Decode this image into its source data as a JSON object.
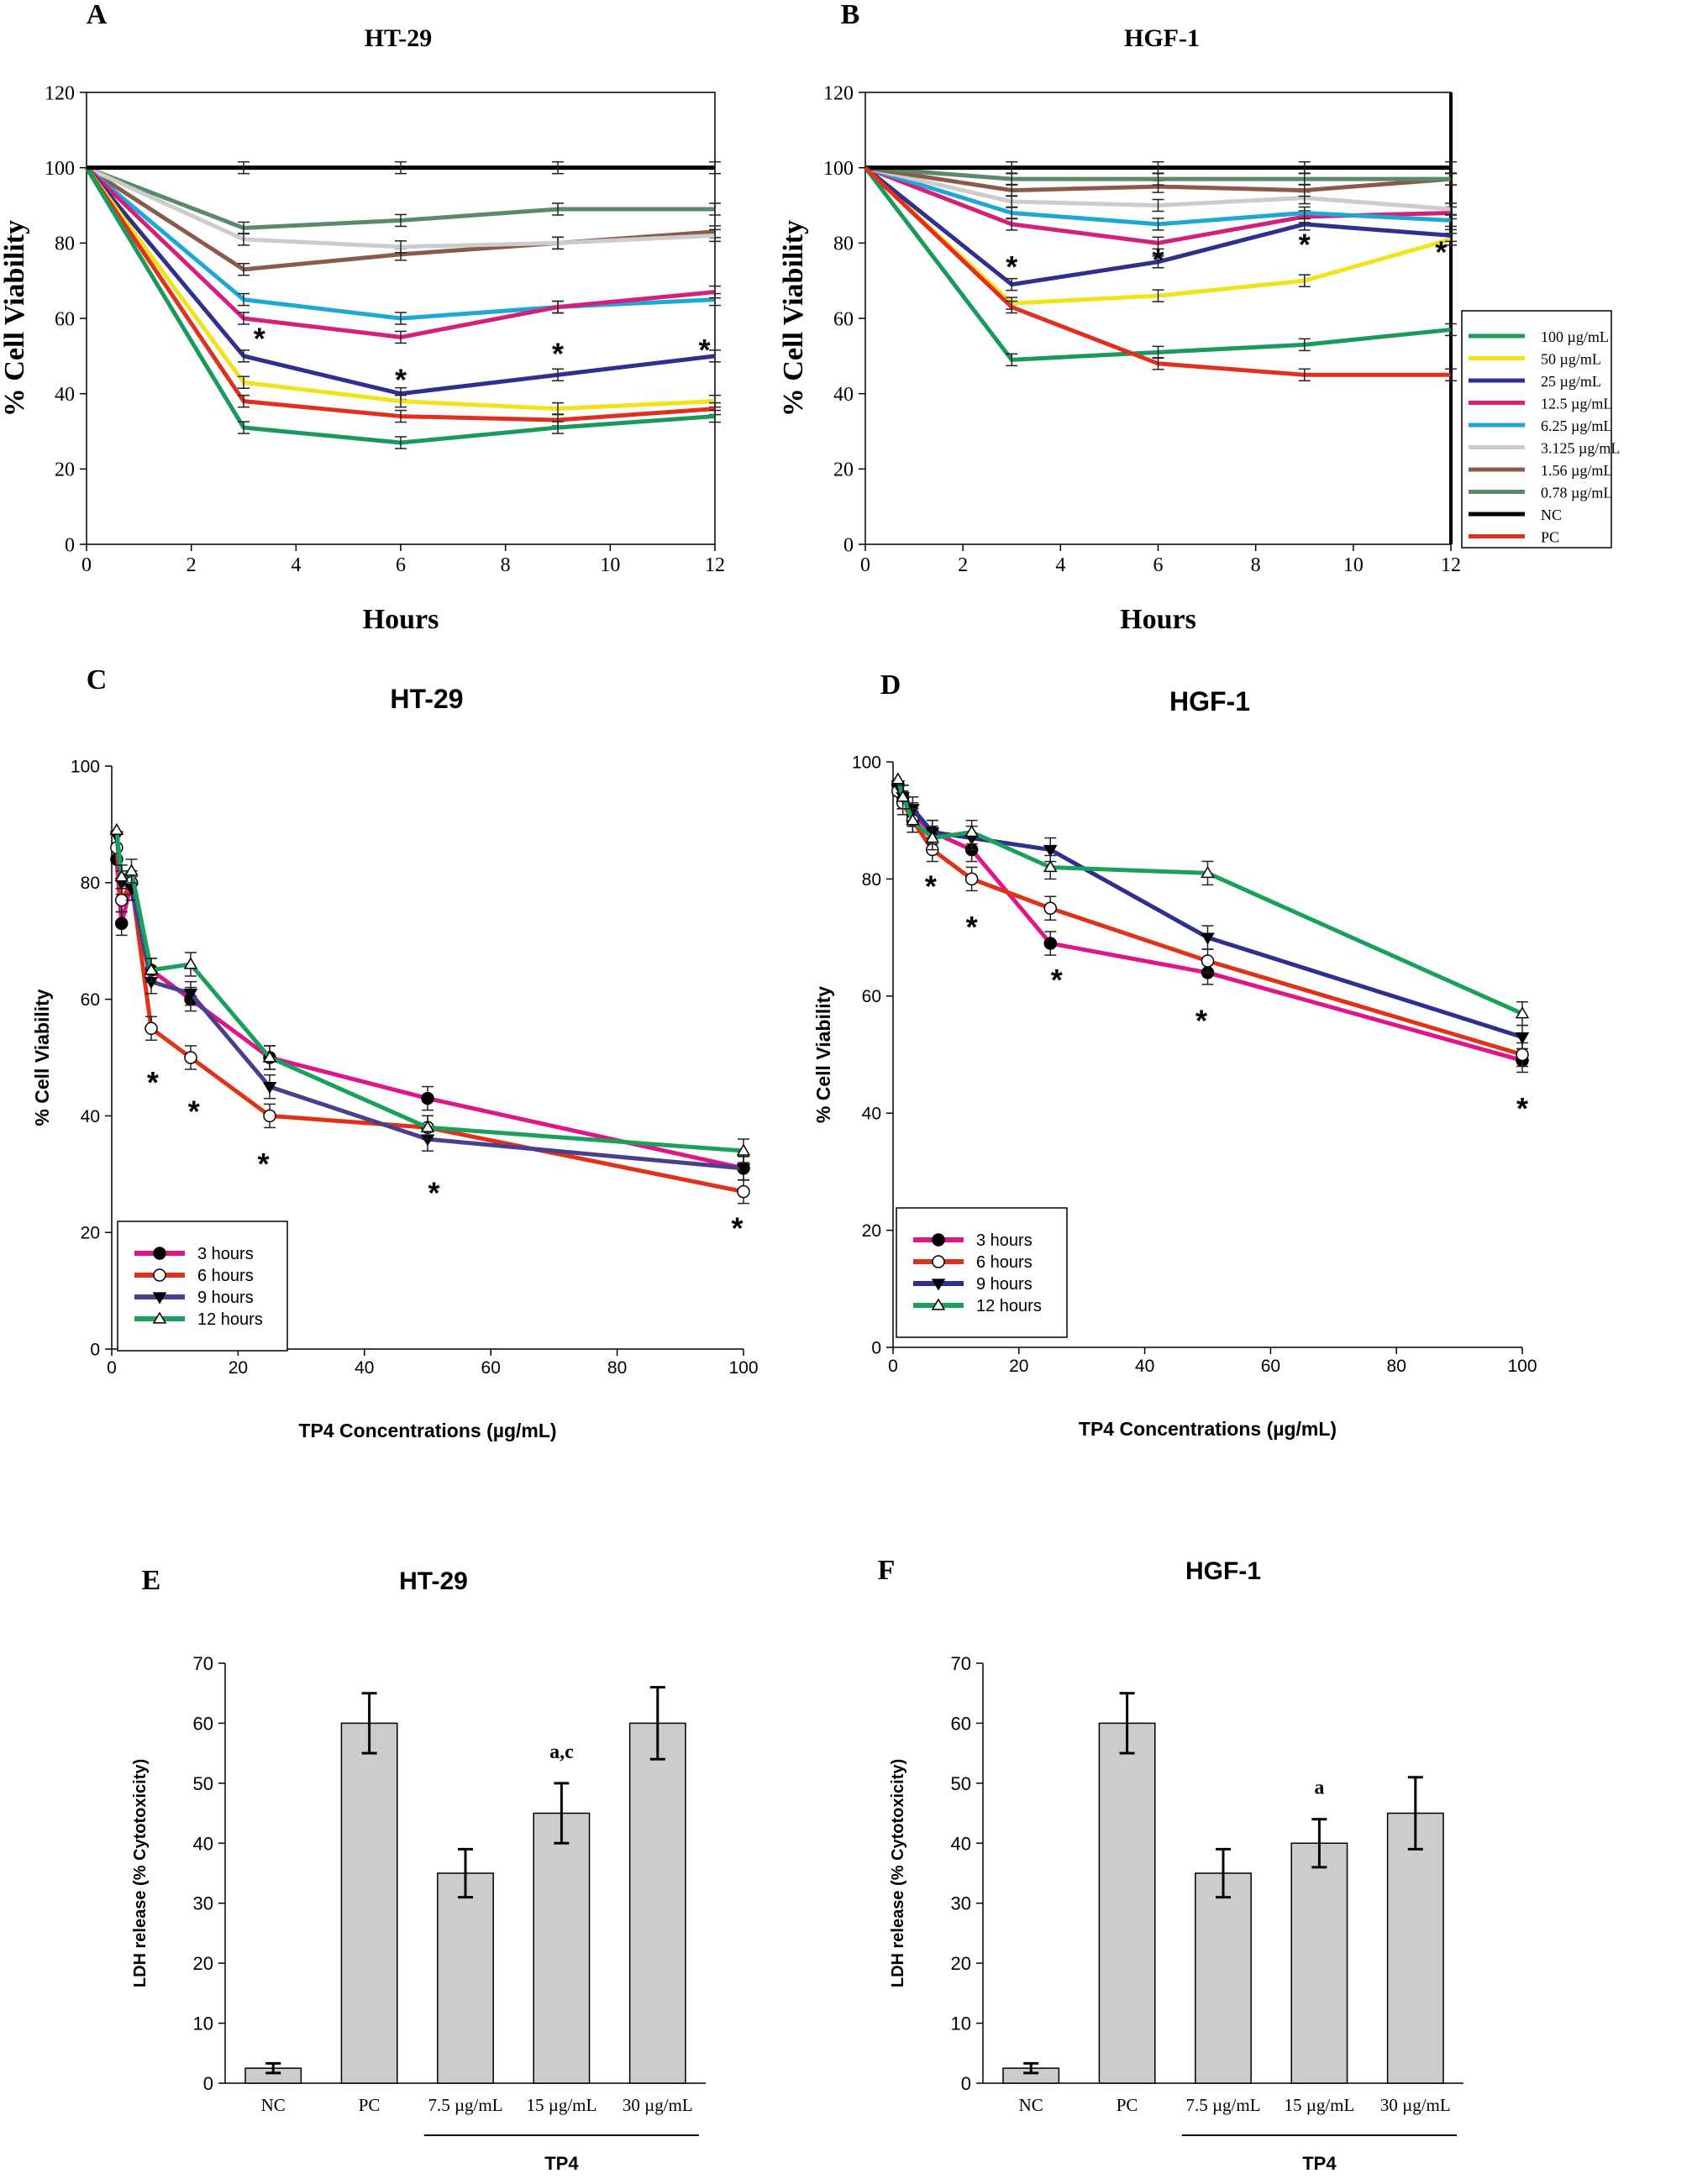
{
  "figure": {
    "panels_meta": "six panels A–F"
  },
  "chart_data": [
    {
      "id": "A",
      "type": "line",
      "letter": "A",
      "title": "HT-29",
      "xlabel": "Hours",
      "ylabel": "% Cell Viability",
      "xlim": [
        0,
        12
      ],
      "ylim": [
        0,
        120
      ],
      "xticks": [
        0,
        2,
        4,
        6,
        8,
        10,
        12
      ],
      "yticks": [
        0,
        20,
        40,
        60,
        80,
        100,
        120
      ],
      "x": [
        0,
        3,
        6,
        9,
        12
      ],
      "series": [
        {
          "name": "0.78 µg/mL",
          "color": "#5a8a6a",
          "values": [
            100,
            84,
            86,
            89,
            89
          ]
        },
        {
          "name": "1.56 µg/mL",
          "color": "#8b5a4a",
          "values": [
            100,
            73,
            77,
            80,
            83
          ]
        },
        {
          "name": "3.125 µg/mL",
          "color": "#cccccc",
          "values": [
            100,
            81,
            79,
            80,
            82
          ]
        },
        {
          "name": "6.25 µg/mL",
          "color": "#1ea7d4",
          "values": [
            100,
            65,
            60,
            63,
            65
          ]
        },
        {
          "name": "12.5 µg/mL",
          "color": "#d4207a",
          "values": [
            100,
            60,
            55,
            63,
            67
          ]
        },
        {
          "name": "25 µg/mL",
          "color": "#2e2f8f",
          "values": [
            100,
            50,
            40,
            45,
            50
          ]
        },
        {
          "name": "50 µg/mL",
          "color": "#f2e21a",
          "values": [
            100,
            43,
            38,
            36,
            38
          ]
        },
        {
          "name": "PC",
          "color": "#e03020",
          "values": [
            100,
            38,
            34,
            33,
            36
          ]
        },
        {
          "name": "100 µg/mL",
          "color": "#1a9a5a",
          "values": [
            100,
            31,
            27,
            31,
            34
          ]
        },
        {
          "name": "NC",
          "color": "#000000",
          "values": [
            100,
            100,
            100,
            100,
            100
          ]
        }
      ],
      "annotations": [
        {
          "text": "*",
          "x": 3.3,
          "y": 55
        },
        {
          "text": "*",
          "x": 6,
          "y": 44
        },
        {
          "text": "*",
          "x": 9,
          "y": 51
        },
        {
          "text": "*",
          "x": 11.8,
          "y": 52
        }
      ]
    },
    {
      "id": "B",
      "type": "line",
      "letter": "B",
      "title": "HGF-1",
      "xlabel": "Hours",
      "ylabel": "% Cell Viability",
      "xlim": [
        0,
        12
      ],
      "ylim": [
        0,
        120
      ],
      "xticks": [
        0,
        2,
        4,
        6,
        8,
        10,
        12
      ],
      "yticks": [
        0,
        20,
        40,
        60,
        80,
        100,
        120
      ],
      "x": [
        0,
        3,
        6,
        9,
        12
      ],
      "legend_position": "right",
      "series": [
        {
          "name": "100 µg/mL",
          "color": "#1a9a5a",
          "values": [
            100,
            49,
            51,
            53,
            57
          ]
        },
        {
          "name": "50 µg/mL",
          "color": "#f2e21a",
          "values": [
            100,
            64,
            66,
            70,
            81
          ]
        },
        {
          "name": "25 µg/mL",
          "color": "#2e2f8f",
          "values": [
            100,
            69,
            75,
            85,
            82
          ]
        },
        {
          "name": "12.5 µg/mL",
          "color": "#d4207a",
          "values": [
            100,
            85,
            80,
            87,
            88
          ]
        },
        {
          "name": "6.25 µg/mL",
          "color": "#1ea7d4",
          "values": [
            100,
            88,
            85,
            88,
            86
          ]
        },
        {
          "name": "3.125 µg/mL",
          "color": "#cccccc",
          "values": [
            100,
            91,
            90,
            92,
            89
          ]
        },
        {
          "name": "1.56 µg/mL",
          "color": "#8b5a4a",
          "values": [
            100,
            94,
            95,
            94,
            97
          ]
        },
        {
          "name": "0.78 µg/mL",
          "color": "#5a8a6a",
          "values": [
            100,
            97,
            97,
            97,
            97
          ]
        },
        {
          "name": "NC",
          "color": "#000000",
          "values": [
            100,
            100,
            100,
            100,
            100
          ]
        },
        {
          "name": "PC",
          "color": "#e03020",
          "values": [
            100,
            63,
            48,
            45,
            45
          ]
        }
      ],
      "annotations": [
        {
          "text": "*",
          "x": 3,
          "y": 74
        },
        {
          "text": "*",
          "x": 6,
          "y": 76
        },
        {
          "text": "*",
          "x": 9,
          "y": 80
        },
        {
          "text": "*",
          "x": 11.8,
          "y": 78
        }
      ]
    },
    {
      "id": "C",
      "type": "line",
      "letter": "C",
      "title": "HT-29",
      "xlabel": "TP4 Concentrations (µg/mL)",
      "ylabel": "% Cell Viability",
      "xlim": [
        0,
        100
      ],
      "ylim": [
        0,
        100
      ],
      "xticks": [
        0,
        20,
        40,
        60,
        80,
        100
      ],
      "yticks": [
        0,
        20,
        40,
        60,
        80,
        100
      ],
      "x": [
        0.78,
        1.56,
        3.125,
        6.25,
        12.5,
        25,
        50,
        100
      ],
      "legend_position": "bottom-left",
      "series": [
        {
          "name": "3 hours",
          "color": "#e0158a",
          "marker": "filled-circle",
          "values": [
            84,
            73,
            80,
            65,
            60,
            50,
            43,
            31
          ]
        },
        {
          "name": "6 hours",
          "color": "#e03218",
          "marker": "open-circle",
          "values": [
            86,
            77,
            80,
            55,
            50,
            40,
            38,
            27
          ]
        },
        {
          "name": "9 hours",
          "color": "#4a3f8f",
          "marker": "filled-triangle-down",
          "values": [
            88,
            80,
            79,
            63,
            61,
            45,
            36,
            31
          ]
        },
        {
          "name": "12 hours",
          "color": "#1aa05a",
          "marker": "open-triangle-up",
          "values": [
            89,
            81,
            82,
            65,
            66,
            50,
            38,
            34
          ]
        }
      ],
      "annotations": [
        {
          "text": "*",
          "x": 6.5,
          "y": 46
        },
        {
          "text": "*",
          "x": 13,
          "y": 41
        },
        {
          "text": "*",
          "x": 24,
          "y": 32
        },
        {
          "text": "*",
          "x": 51,
          "y": 27
        },
        {
          "text": "*",
          "x": 99,
          "y": 21
        }
      ]
    },
    {
      "id": "D",
      "type": "line",
      "letter": "D",
      "title": "HGF-1",
      "xlabel": "TP4 Concentrations (µg/mL)",
      "ylabel": "% Cell Viability",
      "xlim": [
        0,
        100
      ],
      "ylim": [
        0,
        100
      ],
      "xticks": [
        0,
        20,
        40,
        60,
        80,
        100
      ],
      "yticks": [
        0,
        20,
        40,
        60,
        80,
        100
      ],
      "x": [
        0.78,
        1.56,
        3.125,
        6.25,
        12.5,
        25,
        50,
        100
      ],
      "legend_position": "bottom-left",
      "series": [
        {
          "name": "3 hours",
          "color": "#e0158a",
          "marker": "filled-circle",
          "values": [
            96,
            94,
            91,
            88,
            85,
            69,
            64,
            49
          ]
        },
        {
          "name": "6 hours",
          "color": "#e03218",
          "marker": "open-circle",
          "values": [
            95,
            93,
            90,
            85,
            80,
            75,
            66,
            50
          ]
        },
        {
          "name": "9 hours",
          "color": "#2e2f8f",
          "marker": "filled-triangle-down",
          "values": [
            96,
            94,
            92,
            88,
            87,
            85,
            70,
            53
          ]
        },
        {
          "name": "12 hours",
          "color": "#1aa05a",
          "marker": "open-triangle-up",
          "values": [
            97,
            94,
            90,
            87,
            88,
            82,
            81,
            57
          ]
        }
      ],
      "annotations": [
        {
          "text": "*",
          "x": 6,
          "y": 79
        },
        {
          "text": "*",
          "x": 12.5,
          "y": 72
        },
        {
          "text": "*",
          "x": 26,
          "y": 63
        },
        {
          "text": "*",
          "x": 49,
          "y": 56
        },
        {
          "text": "*",
          "x": 100,
          "y": 41
        }
      ]
    },
    {
      "id": "E",
      "type": "bar",
      "letter": "E",
      "title": "HT-29",
      "xlabel": "",
      "ylabel": "LDH release (% Cytotoxicity)",
      "ylim": [
        0,
        70
      ],
      "yticks": [
        0,
        10,
        20,
        30,
        40,
        50,
        60,
        70
      ],
      "categories": [
        "NC",
        "PC",
        "7.5 µg/mL",
        "15 µg/mL",
        "30 µg/mL"
      ],
      "values": [
        2.5,
        60,
        35,
        45,
        60
      ],
      "errors": [
        0.8,
        5,
        4,
        5,
        6
      ],
      "bar_color": "#cccccc",
      "bar_labels": [
        "",
        "",
        "",
        "a,c",
        ""
      ],
      "group_label": "TP4"
    },
    {
      "id": "F",
      "type": "bar",
      "letter": "F",
      "title": "HGF-1",
      "xlabel": "",
      "ylabel": "LDH release (% Cytotoxicity)",
      "ylim": [
        0,
        70
      ],
      "yticks": [
        0,
        10,
        20,
        30,
        40,
        50,
        60,
        70
      ],
      "categories": [
        "NC",
        "PC",
        "7.5 µg/mL",
        "15 µg/mL",
        "30 µg/mL"
      ],
      "values": [
        2.5,
        60,
        35,
        40,
        45
      ],
      "errors": [
        0.8,
        5,
        4,
        4,
        6
      ],
      "bar_color": "#cccccc",
      "bar_labels": [
        "",
        "",
        "",
        "a",
        ""
      ],
      "group_label": "TP4"
    }
  ]
}
